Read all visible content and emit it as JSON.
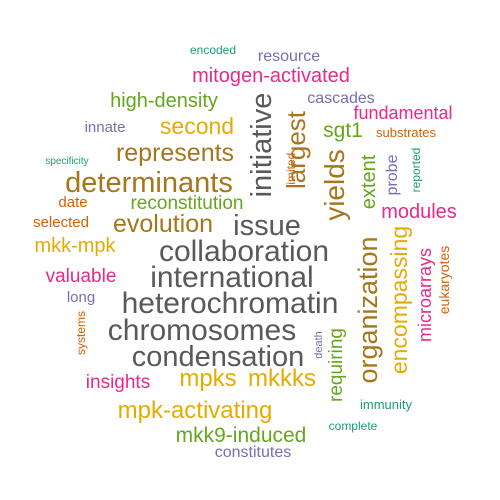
{
  "colors": {
    "gray": "#595959",
    "brown": "#a6761d",
    "gold": "#e6ab02",
    "green": "#66a61e",
    "magenta": "#e7298a",
    "purple": "#7570b3",
    "orange": "#d95f02",
    "teal": "#1b9e77"
  },
  "words": [
    {
      "text": "encoded",
      "color": "teal"
    },
    {
      "text": "resource",
      "color": "purple"
    },
    {
      "text": "mitogen-activated",
      "color": "magenta"
    },
    {
      "text": "high-density",
      "color": "green"
    },
    {
      "text": "cascades",
      "color": "purple"
    },
    {
      "text": "fundamental",
      "color": "magenta"
    },
    {
      "text": "innate",
      "color": "purple"
    },
    {
      "text": "second",
      "color": "gold"
    },
    {
      "text": "substrates",
      "color": "orange"
    },
    {
      "text": "initiative",
      "color": "gray"
    },
    {
      "text": "largest",
      "color": "brown"
    },
    {
      "text": "sgt1",
      "color": "green"
    },
    {
      "text": "represents",
      "color": "brown"
    },
    {
      "text": "specificity",
      "color": "teal"
    },
    {
      "text": "limited",
      "color": "orange"
    },
    {
      "text": "yields",
      "color": "brown"
    },
    {
      "text": "extent",
      "color": "green"
    },
    {
      "text": "probe",
      "color": "purple"
    },
    {
      "text": "reported",
      "color": "teal"
    },
    {
      "text": "determinants",
      "color": "brown"
    },
    {
      "text": "date",
      "color": "orange"
    },
    {
      "text": "reconstitution",
      "color": "green"
    },
    {
      "text": "modules",
      "color": "magenta"
    },
    {
      "text": "selected",
      "color": "orange"
    },
    {
      "text": "evolution",
      "color": "brown"
    },
    {
      "text": "issue",
      "color": "gray"
    },
    {
      "text": "mkk-mpk",
      "color": "gold"
    },
    {
      "text": "collaboration",
      "color": "gray"
    },
    {
      "text": "organization",
      "color": "brown"
    },
    {
      "text": "encompassing",
      "color": "gold"
    },
    {
      "text": "microarrays",
      "color": "magenta"
    },
    {
      "text": "eukaryotes",
      "color": "orange"
    },
    {
      "text": "valuable",
      "color": "magenta"
    },
    {
      "text": "international",
      "color": "gray"
    },
    {
      "text": "long",
      "color": "purple"
    },
    {
      "text": "heterochromatin",
      "color": "gray"
    },
    {
      "text": "systems",
      "color": "orange"
    },
    {
      "text": "chromosomes",
      "color": "gray"
    },
    {
      "text": "death",
      "color": "purple"
    },
    {
      "text": "requiring",
      "color": "green"
    },
    {
      "text": "condensation",
      "color": "gray"
    },
    {
      "text": "insights",
      "color": "magenta"
    },
    {
      "text": "mpks",
      "color": "gold"
    },
    {
      "text": "mkkks",
      "color": "gold"
    },
    {
      "text": "immunity",
      "color": "teal"
    },
    {
      "text": "mpk-activating",
      "color": "gold"
    },
    {
      "text": "complete",
      "color": "teal"
    },
    {
      "text": "mkk9-induced",
      "color": "green"
    },
    {
      "text": "constitutes",
      "color": "purple"
    }
  ]
}
